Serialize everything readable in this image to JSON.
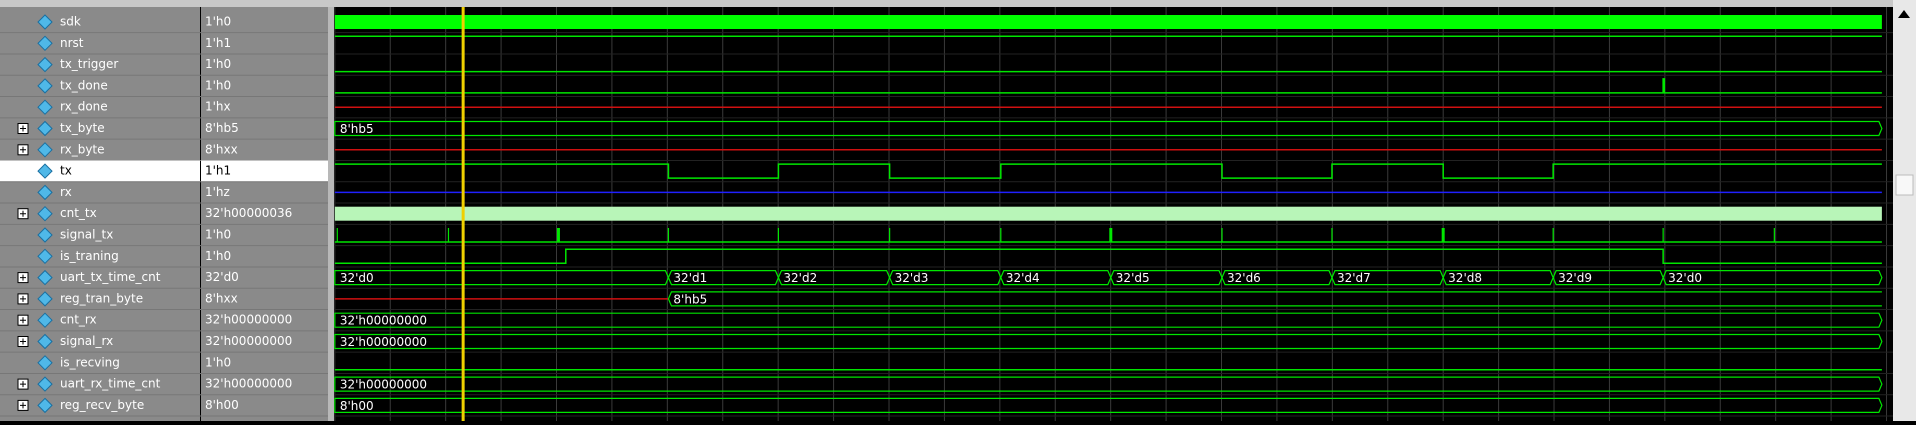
{
  "signals": [
    {
      "name": "sdk",
      "value": "1'h0"
    },
    {
      "name": "nrst",
      "value": "1'h1"
    },
    {
      "name": "tx_trigger",
      "value": "1'h0"
    },
    {
      "name": "tx_done",
      "value": "1'h0"
    },
    {
      "name": "rx_done",
      "value": "1'hx"
    },
    {
      "name": "tx_byte",
      "value": "8'hb5",
      "wave_labels": [
        "8'hb5"
      ]
    },
    {
      "name": "rx_byte",
      "value": "8'hxx"
    },
    {
      "name": "tx",
      "value": "1'h1"
    },
    {
      "name": "rx",
      "value": "1'hz"
    },
    {
      "name": "cnt_tx",
      "value": "32'h00000036"
    },
    {
      "name": "signal_tx",
      "value": "1'h0"
    },
    {
      "name": "is_traning",
      "value": "1'h0"
    },
    {
      "name": "uart_tx_time_cnt",
      "value": "32'd0",
      "wave_labels": [
        "32'd0",
        "32'd1",
        "32'd2",
        "32'd3",
        "32'd4",
        "32'd5",
        "32'd6",
        "32'd7",
        "32'd8",
        "32'd9",
        "32'd0"
      ]
    },
    {
      "name": "reg_tran_byte",
      "value": "8'hxx",
      "wave_labels": [
        "8'hb5"
      ]
    },
    {
      "name": "cnt_rx",
      "value": "32'h00000000",
      "wave_labels": [
        "32'h00000000"
      ]
    },
    {
      "name": "signal_rx",
      "value": "32'h00000000",
      "wave_labels": [
        "32'h00000000"
      ]
    },
    {
      "name": "is_recving",
      "value": "1'h0"
    },
    {
      "name": "uart_rx_time_cnt",
      "value": "32'h00000000",
      "wave_labels": [
        "32'h00000000"
      ]
    },
    {
      "name": "reg_recv_byte",
      "value": "8'h00",
      "wave_labels": [
        "8'h00"
      ]
    }
  ]
}
